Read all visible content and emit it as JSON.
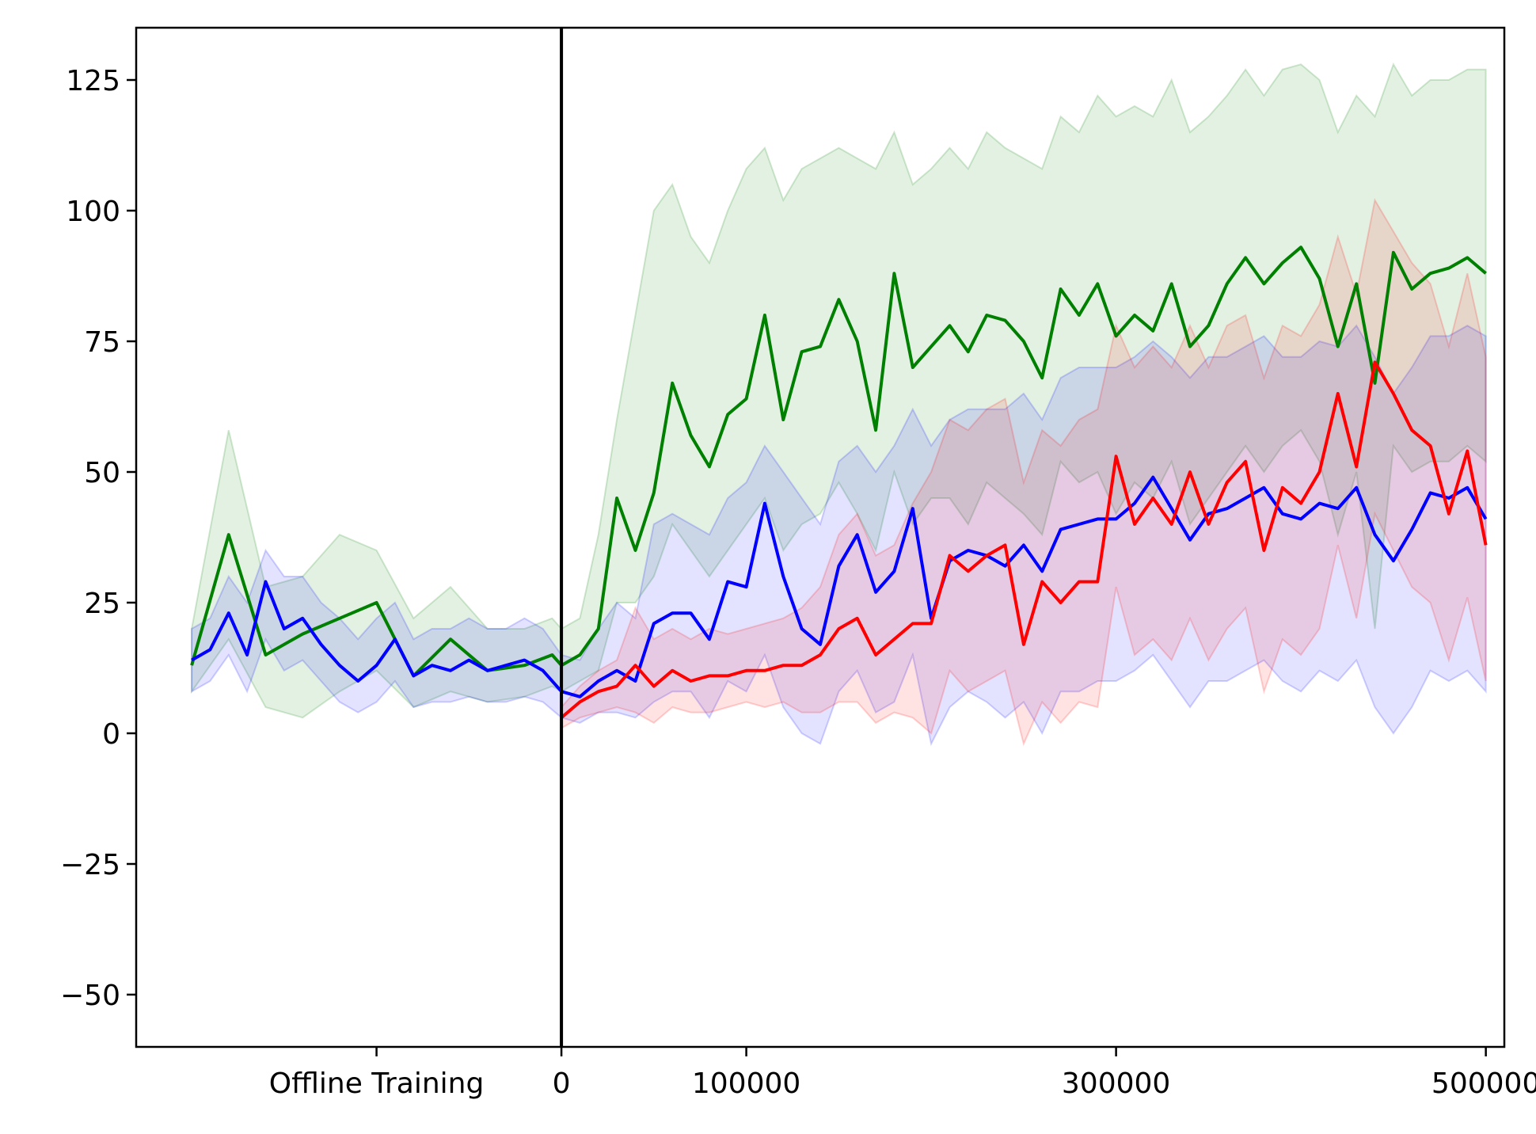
{
  "chart_data": {
    "type": "line",
    "title": "",
    "xlabel": "",
    "ylabel": "",
    "grid": false,
    "legend": "none",
    "ylim": [
      -60,
      135
    ],
    "xlim": [
      -230000,
      510000
    ],
    "x_ticks": [
      {
        "value": -100000,
        "label": "Offline Training"
      },
      {
        "value": 0,
        "label": "0"
      },
      {
        "value": 100000,
        "label": "100000"
      },
      {
        "value": 300000,
        "label": "300000"
      },
      {
        "value": 500000,
        "label": "500000"
      }
    ],
    "y_ticks": [
      {
        "value": 125,
        "label": "125"
      },
      {
        "value": 100,
        "label": "100"
      },
      {
        "value": 75,
        "label": "75"
      },
      {
        "value": 50,
        "label": "50"
      },
      {
        "value": 25,
        "label": "25"
      },
      {
        "value": 0,
        "label": "0"
      },
      {
        "value": -25,
        "label": "−25"
      },
      {
        "value": -50,
        "label": "−50"
      }
    ],
    "divider_x": 0,
    "series": [
      {
        "color": "#008000",
        "x": [
          -200000,
          -180000,
          -160000,
          -140000,
          -120000,
          -100000,
          -80000,
          -60000,
          -40000,
          -20000,
          -5000,
          0,
          10000,
          20000,
          30000,
          40000,
          50000,
          60000,
          70000,
          80000,
          90000,
          100000,
          110000,
          120000,
          130000,
          140000,
          150000,
          160000,
          170000,
          180000,
          190000,
          200000,
          210000,
          220000,
          230000,
          240000,
          250000,
          260000,
          270000,
          280000,
          290000,
          300000,
          310000,
          320000,
          330000,
          340000,
          350000,
          360000,
          370000,
          380000,
          390000,
          400000,
          410000,
          420000,
          430000,
          440000,
          450000,
          460000,
          470000,
          480000,
          490000,
          500000
        ],
        "y": [
          13,
          38,
          15,
          19,
          22,
          25,
          11,
          18,
          12,
          13,
          15,
          13,
          15,
          20,
          45,
          35,
          46,
          67,
          57,
          51,
          61,
          64,
          80,
          60,
          73,
          74,
          83,
          75,
          58,
          88,
          70,
          74,
          78,
          73,
          80,
          79,
          75,
          68,
          85,
          80,
          86,
          76,
          80,
          77,
          86,
          74,
          78,
          86,
          91,
          86,
          90,
          93,
          87,
          74,
          86,
          67,
          92,
          85,
          88,
          89,
          91,
          88
        ],
        "upper": [
          20,
          58,
          28,
          30,
          38,
          35,
          22,
          28,
          20,
          20,
          22,
          20,
          22,
          38,
          60,
          80,
          100,
          105,
          95,
          90,
          100,
          108,
          112,
          102,
          108,
          110,
          112,
          110,
          108,
          115,
          105,
          108,
          112,
          108,
          115,
          112,
          110,
          108,
          118,
          115,
          122,
          118,
          120,
          118,
          125,
          115,
          118,
          122,
          127,
          122,
          127,
          128,
          125,
          115,
          122,
          118,
          128,
          122,
          125,
          125,
          127,
          127
        ],
        "lower": [
          8,
          18,
          5,
          3,
          8,
          12,
          5,
          8,
          6,
          7,
          9,
          8,
          10,
          12,
          25,
          25,
          30,
          40,
          35,
          30,
          35,
          40,
          45,
          35,
          40,
          42,
          48,
          42,
          35,
          50,
          40,
          45,
          45,
          40,
          48,
          45,
          42,
          38,
          52,
          48,
          50,
          42,
          48,
          45,
          52,
          40,
          45,
          50,
          55,
          50,
          55,
          58,
          52,
          38,
          50,
          20,
          55,
          50,
          52,
          52,
          55,
          52
        ]
      },
      {
        "color": "#0000ff",
        "x": [
          -200000,
          -190000,
          -180000,
          -170000,
          -160000,
          -150000,
          -140000,
          -130000,
          -120000,
          -110000,
          -100000,
          -90000,
          -80000,
          -70000,
          -60000,
          -50000,
          -40000,
          -30000,
          -20000,
          -10000,
          0,
          10000,
          20000,
          30000,
          40000,
          50000,
          60000,
          70000,
          80000,
          90000,
          100000,
          110000,
          120000,
          130000,
          140000,
          150000,
          160000,
          170000,
          180000,
          190000,
          200000,
          210000,
          220000,
          230000,
          240000,
          250000,
          260000,
          270000,
          280000,
          290000,
          300000,
          310000,
          320000,
          330000,
          340000,
          350000,
          360000,
          370000,
          380000,
          390000,
          400000,
          410000,
          420000,
          430000,
          440000,
          450000,
          460000,
          470000,
          480000,
          490000,
          500000
        ],
        "y": [
          14,
          16,
          23,
          15,
          29,
          20,
          22,
          17,
          13,
          10,
          13,
          18,
          11,
          13,
          12,
          14,
          12,
          13,
          14,
          12,
          8,
          7,
          10,
          12,
          10,
          21,
          23,
          23,
          18,
          29,
          28,
          44,
          30,
          20,
          17,
          32,
          38,
          27,
          31,
          43,
          22,
          33,
          35,
          34,
          32,
          36,
          31,
          39,
          40,
          41,
          41,
          44,
          49,
          43,
          37,
          42,
          43,
          45,
          47,
          42,
          41,
          44,
          43,
          47,
          38,
          33,
          39,
          46,
          45,
          47,
          41
        ],
        "upper": [
          20,
          22,
          30,
          25,
          35,
          30,
          30,
          25,
          22,
          18,
          22,
          25,
          18,
          20,
          20,
          22,
          20,
          20,
          22,
          20,
          15,
          14,
          20,
          25,
          22,
          40,
          42,
          40,
          38,
          45,
          48,
          55,
          50,
          45,
          40,
          52,
          55,
          50,
          55,
          62,
          55,
          60,
          62,
          62,
          62,
          65,
          60,
          68,
          70,
          70,
          70,
          72,
          75,
          72,
          68,
          72,
          72,
          74,
          76,
          72,
          72,
          75,
          74,
          78,
          72,
          65,
          70,
          76,
          76,
          78,
          76
        ],
        "lower": [
          8,
          10,
          15,
          8,
          18,
          12,
          14,
          10,
          6,
          4,
          6,
          10,
          5,
          6,
          6,
          7,
          6,
          6,
          7,
          6,
          3,
          2,
          4,
          4,
          3,
          6,
          8,
          8,
          3,
          10,
          8,
          15,
          5,
          0,
          -2,
          8,
          12,
          4,
          6,
          15,
          -2,
          5,
          8,
          6,
          3,
          6,
          0,
          8,
          8,
          10,
          10,
          12,
          15,
          10,
          5,
          10,
          10,
          12,
          14,
          10,
          8,
          12,
          10,
          14,
          5,
          0,
          5,
          12,
          10,
          12,
          8
        ]
      },
      {
        "color": "#ff0000",
        "x": [
          0,
          10000,
          20000,
          30000,
          40000,
          50000,
          60000,
          70000,
          80000,
          90000,
          100000,
          110000,
          120000,
          130000,
          140000,
          150000,
          160000,
          170000,
          180000,
          190000,
          200000,
          210000,
          220000,
          230000,
          240000,
          250000,
          260000,
          270000,
          280000,
          290000,
          300000,
          310000,
          320000,
          330000,
          340000,
          350000,
          360000,
          370000,
          380000,
          390000,
          400000,
          410000,
          420000,
          430000,
          440000,
          450000,
          460000,
          470000,
          480000,
          490000,
          500000
        ],
        "y": [
          3,
          6,
          8,
          9,
          13,
          9,
          12,
          10,
          11,
          11,
          12,
          12,
          13,
          13,
          15,
          20,
          22,
          15,
          18,
          21,
          21,
          34,
          31,
          34,
          36,
          17,
          29,
          25,
          29,
          29,
          53,
          40,
          45,
          40,
          50,
          40,
          48,
          52,
          35,
          47,
          44,
          50,
          65,
          51,
          71,
          65,
          58,
          55,
          42,
          54,
          36
        ],
        "upper": [
          5,
          9,
          12,
          14,
          24,
          18,
          20,
          18,
          20,
          19,
          20,
          21,
          22,
          24,
          28,
          38,
          42,
          34,
          36,
          44,
          50,
          60,
          58,
          62,
          64,
          48,
          58,
          55,
          60,
          62,
          78,
          70,
          74,
          70,
          78,
          70,
          78,
          80,
          68,
          78,
          76,
          82,
          95,
          84,
          102,
          96,
          90,
          86,
          74,
          88,
          72
        ],
        "lower": [
          1,
          3,
          4,
          5,
          4,
          2,
          5,
          4,
          4,
          5,
          6,
          5,
          6,
          4,
          4,
          6,
          6,
          2,
          4,
          3,
          0,
          12,
          8,
          10,
          12,
          -2,
          6,
          2,
          6,
          5,
          28,
          15,
          18,
          14,
          22,
          14,
          20,
          24,
          8,
          18,
          15,
          20,
          36,
          22,
          42,
          35,
          28,
          25,
          14,
          26,
          10
        ]
      }
    ]
  }
}
